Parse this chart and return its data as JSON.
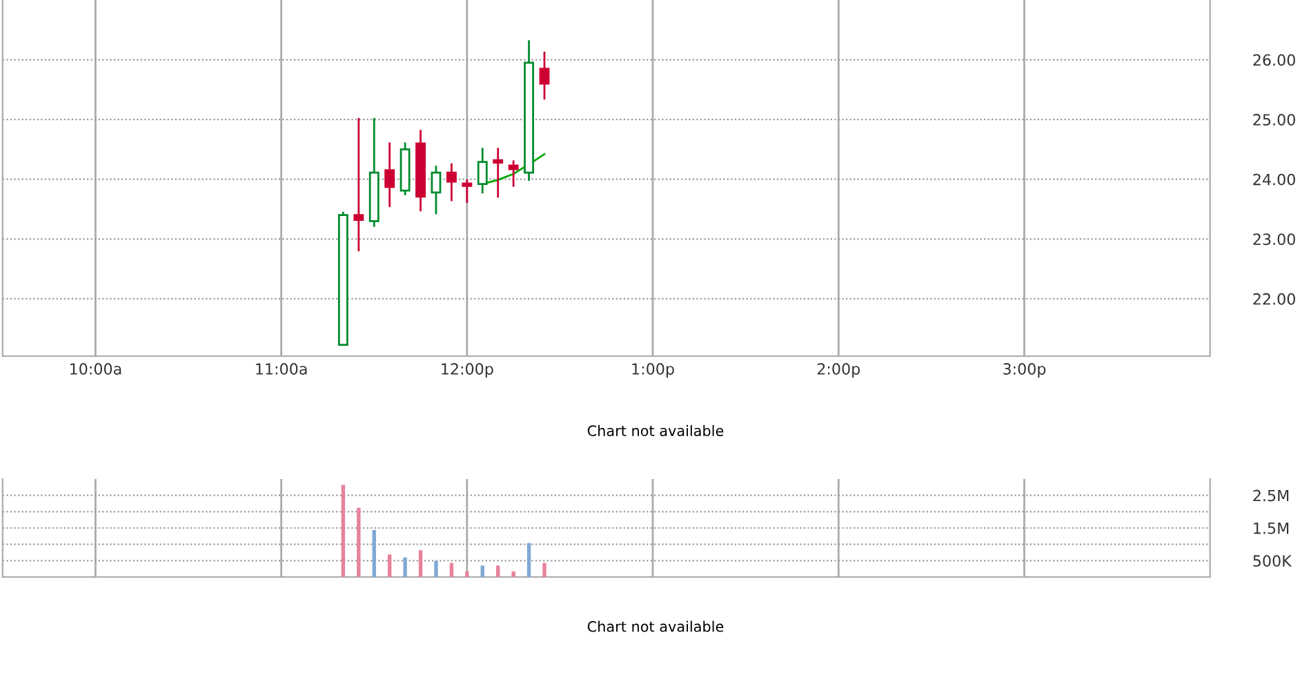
{
  "chart_data": [
    {
      "type": "candlestick",
      "x": [
        11.3333,
        11.4167,
        11.5,
        11.5833,
        11.6667,
        11.75,
        11.8333,
        11.9167,
        12.0,
        12.0833,
        12.1667,
        12.25,
        12.3333,
        12.4167
      ],
      "ohlc": [
        [
          21.23,
          23.44,
          21.23,
          23.4
        ],
        [
          23.4,
          25.01,
          22.81,
          23.32
        ],
        [
          23.3,
          25.01,
          23.22,
          24.11
        ],
        [
          24.15,
          24.6,
          23.55,
          23.87
        ],
        [
          23.81,
          24.6,
          23.75,
          24.5
        ],
        [
          24.6,
          24.81,
          23.48,
          23.71
        ],
        [
          23.78,
          24.21,
          23.43,
          24.11
        ],
        [
          24.11,
          24.25,
          23.65,
          23.96
        ],
        [
          23.93,
          23.98,
          23.62,
          23.89
        ],
        [
          23.92,
          24.51,
          23.78,
          24.29
        ],
        [
          24.32,
          24.51,
          23.71,
          24.28
        ],
        [
          24.23,
          24.3,
          23.89,
          24.17
        ],
        [
          24.11,
          26.31,
          23.99,
          25.95
        ],
        [
          25.85,
          26.12,
          25.35,
          25.6
        ]
      ],
      "colors": [
        "#008a2e",
        "#cc0033",
        "#008a2e",
        "#cc0033",
        "#008a2e",
        "#cc0033",
        "#008a2e",
        "#cc0033",
        "#cc0033",
        "#008a2e",
        "#cc0033",
        "#cc0033",
        "#008a2e",
        "#cc0033"
      ],
      "series": [
        {
          "type": "line",
          "x": [
            12.0833,
            12.1667,
            12.25,
            12.3333,
            12.4167
          ],
          "values": [
            23.92,
            23.99,
            24.09,
            24.25,
            24.42
          ],
          "color": "#00aa00"
        }
      ],
      "xlim": [
        9.5,
        16
      ],
      "xticks": [
        {
          "value": 10,
          "label": "10:00a"
        },
        {
          "value": 11,
          "label": "11:00a"
        },
        {
          "value": 12,
          "label": "12:00p"
        },
        {
          "value": 13,
          "label": "1:00p"
        },
        {
          "value": 14,
          "label": "2:00p"
        },
        {
          "value": 15,
          "label": "3:00p"
        }
      ],
      "ylim": [
        21.04,
        27.0
      ],
      "yticks": [
        {
          "value": 22,
          "label": "22.00"
        },
        {
          "value": 23,
          "label": "23.00"
        },
        {
          "value": 24,
          "label": "24.00"
        },
        {
          "value": 25,
          "label": "25.00"
        },
        {
          "value": 26,
          "label": "26.00"
        }
      ],
      "grid": true,
      "annotations": [
        "Chart not available"
      ]
    },
    {
      "type": "bar",
      "x": [
        11.3333,
        11.4167,
        11.5,
        11.5833,
        11.6667,
        11.75,
        11.8333,
        11.9167,
        12.0,
        12.0833,
        12.1667,
        12.25,
        12.3333,
        12.4167
      ],
      "values": [
        2820000,
        2120000,
        1440000,
        690000,
        600000,
        820000,
        490000,
        430000,
        170000,
        350000,
        350000,
        170000,
        1040000,
        430000
      ],
      "colors": [
        "#e8829b",
        "#e8829b",
        "#7fa8d4",
        "#e8829b",
        "#7fa8d4",
        "#e8829b",
        "#7fa8d4",
        "#e8829b",
        "#e8829b",
        "#7fa8d4",
        "#e8829b",
        "#e8829b",
        "#7fa8d4",
        "#e8829b"
      ],
      "xlim": [
        9.5,
        16
      ],
      "xticks": [
        {
          "value": 10,
          "label": null
        },
        {
          "value": 11,
          "label": null
        },
        {
          "value": 12,
          "label": null
        },
        {
          "value": 13,
          "label": null
        },
        {
          "value": 14,
          "label": null
        },
        {
          "value": 15,
          "label": null
        }
      ],
      "ylim": [
        0,
        3000000
      ],
      "yticks": [
        {
          "value": 500000,
          "label": "500K"
        },
        {
          "value": 1000000,
          "label": null
        },
        {
          "value": 1500000,
          "label": "1.5M"
        },
        {
          "value": 2000000,
          "label": null
        },
        {
          "value": 2500000,
          "label": "2.5M"
        }
      ],
      "grid": true,
      "tick_labels": "y",
      "annotations": [
        "Chart not available"
      ]
    }
  ]
}
